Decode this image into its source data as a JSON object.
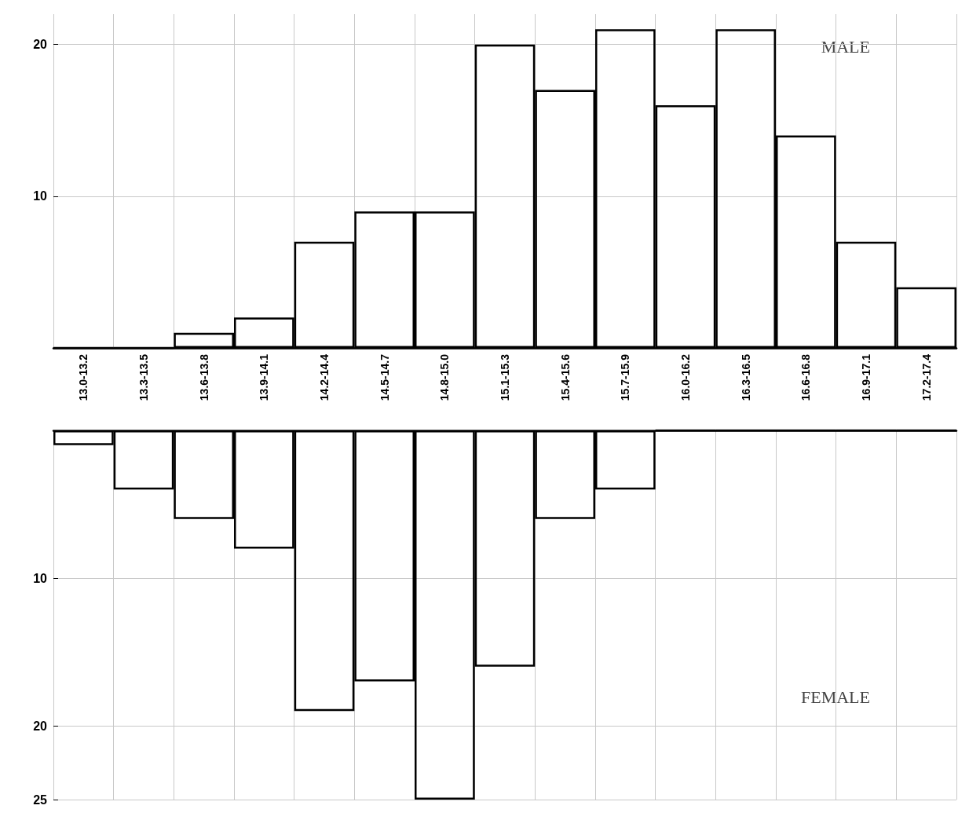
{
  "chart_data": [
    {
      "type": "bar",
      "categories": [
        "13.0-13.2",
        "13.3-13.5",
        "13.6-13.8",
        "13.9-14.1",
        "14.2-14.4",
        "14.5-14.7",
        "14.8-15.0",
        "15.1-15.3",
        "15.4-15.6",
        "15.7-15.9",
        "16.0-16.2",
        "16.3-16.5",
        "16.6-16.8",
        "16.9-17.1",
        "17.2-17.4"
      ],
      "series": [
        {
          "color": "#000000",
          "values": [
            0,
            0,
            1,
            2,
            7,
            9,
            9,
            20,
            17,
            21,
            16,
            21,
            14,
            7,
            4
          ]
        }
      ],
      "ylim": [
        0,
        22
      ],
      "yticks": [
        10,
        20
      ],
      "grid": true,
      "annotations": [
        "MALE"
      ]
    },
    {
      "type": "bar",
      "categories": [
        null,
        null,
        null,
        null,
        null,
        null,
        null,
        null,
        null,
        null,
        null,
        null,
        null,
        null,
        null
      ],
      "series": [
        {
          "color": "#000000",
          "values": [
            1,
            4,
            6,
            8,
            19,
            17,
            25,
            16,
            6,
            4,
            0,
            0,
            0,
            0,
            0
          ]
        }
      ],
      "ylim": [
        25,
        0
      ],
      "yticks": [
        10,
        20,
        25
      ],
      "grid": true,
      "tick_labels": "y",
      "annotations": [
        "FEMALE"
      ]
    }
  ]
}
